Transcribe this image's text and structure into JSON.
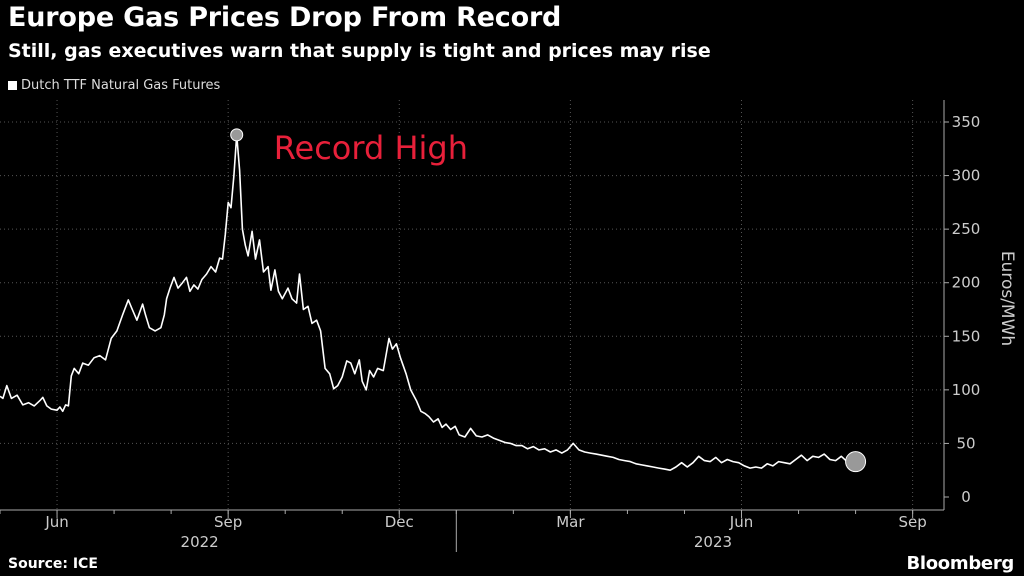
{
  "header": {
    "title": "Europe Gas Prices Drop From Record",
    "subtitle": "Still, gas executives warn that supply is tight and prices may rise"
  },
  "footer": {
    "source": "Source: ICE",
    "brand": "Bloomberg"
  },
  "colors": {
    "background": "#000000",
    "line": "#ffffff",
    "grid": "#555555",
    "annotation": "#e8203a",
    "marker": "#999999"
  },
  "chart_data": {
    "type": "line",
    "title": "Europe Gas Prices Drop From Record",
    "subtitle": "Still, gas executives warn that supply is tight and prices may rise",
    "ylabel": "Euros/MWh",
    "xlabel": "",
    "ylim": [
      0,
      360
    ],
    "yticks": [
      0,
      50,
      100,
      150,
      200,
      250,
      300,
      350
    ],
    "y_axis_side": "right",
    "grid": "dotted vertical + horizontal",
    "x_domain": [
      0,
      16.55
    ],
    "x_unit": "months since 2022-05-01",
    "xticks": [
      {
        "label": "Jun",
        "x": 1.0
      },
      {
        "label": "Sep",
        "x": 4.0
      },
      {
        "label": "Dec",
        "x": 7.0
      },
      {
        "label": "Mar",
        "x": 10.0
      },
      {
        "label": "Jun",
        "x": 13.0
      },
      {
        "label": "Sep",
        "x": 16.0
      }
    ],
    "year_labels": [
      {
        "label": "2022",
        "x": 3.5
      },
      {
        "label": "2023",
        "x": 12.5
      }
    ],
    "year_divider_x": 8.0,
    "series": [
      {
        "name": "Dutch TTF Natural Gas Futures",
        "points": [
          [
            0.0,
            94
          ],
          [
            0.05,
            92
          ],
          [
            0.12,
            104
          ],
          [
            0.2,
            92
          ],
          [
            0.3,
            95
          ],
          [
            0.4,
            86
          ],
          [
            0.5,
            88
          ],
          [
            0.6,
            85
          ],
          [
            0.7,
            90
          ],
          [
            0.75,
            93
          ],
          [
            0.82,
            85
          ],
          [
            0.9,
            82
          ],
          [
            1.0,
            81
          ],
          [
            1.05,
            84
          ],
          [
            1.1,
            80
          ],
          [
            1.15,
            86
          ],
          [
            1.2,
            85
          ],
          [
            1.25,
            113
          ],
          [
            1.3,
            120
          ],
          [
            1.38,
            115
          ],
          [
            1.45,
            125
          ],
          [
            1.55,
            123
          ],
          [
            1.65,
            130
          ],
          [
            1.75,
            132
          ],
          [
            1.85,
            128
          ],
          [
            1.95,
            148
          ],
          [
            2.05,
            155
          ],
          [
            2.15,
            170
          ],
          [
            2.25,
            184
          ],
          [
            2.32,
            175
          ],
          [
            2.4,
            165
          ],
          [
            2.5,
            180
          ],
          [
            2.55,
            170
          ],
          [
            2.62,
            158
          ],
          [
            2.72,
            155
          ],
          [
            2.82,
            158
          ],
          [
            2.88,
            170
          ],
          [
            2.92,
            185
          ],
          [
            2.98,
            195
          ],
          [
            3.05,
            205
          ],
          [
            3.12,
            195
          ],
          [
            3.2,
            200
          ],
          [
            3.27,
            205
          ],
          [
            3.33,
            192
          ],
          [
            3.4,
            198
          ],
          [
            3.47,
            194
          ],
          [
            3.54,
            203
          ],
          [
            3.62,
            208
          ],
          [
            3.7,
            215
          ],
          [
            3.78,
            210
          ],
          [
            3.85,
            223
          ],
          [
            3.9,
            222
          ],
          [
            3.95,
            245
          ],
          [
            4.0,
            275
          ],
          [
            4.05,
            270
          ],
          [
            4.1,
            300
          ],
          [
            4.15,
            338
          ],
          [
            4.2,
            305
          ],
          [
            4.25,
            250
          ],
          [
            4.3,
            235
          ],
          [
            4.35,
            225
          ],
          [
            4.42,
            248
          ],
          [
            4.48,
            222
          ],
          [
            4.55,
            240
          ],
          [
            4.62,
            210
          ],
          [
            4.7,
            215
          ],
          [
            4.75,
            193
          ],
          [
            4.82,
            212
          ],
          [
            4.88,
            192
          ],
          [
            4.95,
            185
          ],
          [
            5.05,
            195
          ],
          [
            5.12,
            185
          ],
          [
            5.2,
            181
          ],
          [
            5.25,
            208
          ],
          [
            5.32,
            175
          ],
          [
            5.4,
            178
          ],
          [
            5.47,
            162
          ],
          [
            5.55,
            165
          ],
          [
            5.62,
            155
          ],
          [
            5.7,
            120
          ],
          [
            5.78,
            115
          ],
          [
            5.85,
            101
          ],
          [
            5.92,
            104
          ],
          [
            6.0,
            112
          ],
          [
            6.08,
            127
          ],
          [
            6.15,
            125
          ],
          [
            6.22,
            115
          ],
          [
            6.3,
            128
          ],
          [
            6.35,
            108
          ],
          [
            6.42,
            100
          ],
          [
            6.48,
            118
          ],
          [
            6.55,
            112
          ],
          [
            6.62,
            120
          ],
          [
            6.72,
            118
          ],
          [
            6.82,
            148
          ],
          [
            6.88,
            138
          ],
          [
            6.95,
            143
          ],
          [
            7.02,
            130
          ],
          [
            7.12,
            115
          ],
          [
            7.2,
            100
          ],
          [
            7.3,
            90
          ],
          [
            7.38,
            80
          ],
          [
            7.45,
            78
          ],
          [
            7.52,
            75
          ],
          [
            7.6,
            70
          ],
          [
            7.68,
            73
          ],
          [
            7.75,
            65
          ],
          [
            7.82,
            68
          ],
          [
            7.9,
            63
          ],
          [
            7.98,
            66
          ],
          [
            8.05,
            58
          ],
          [
            8.15,
            56
          ],
          [
            8.25,
            64
          ],
          [
            8.35,
            57
          ],
          [
            8.45,
            56
          ],
          [
            8.55,
            58
          ],
          [
            8.65,
            55
          ],
          [
            8.75,
            53
          ],
          [
            8.85,
            51
          ],
          [
            8.95,
            50
          ],
          [
            9.05,
            48
          ],
          [
            9.15,
            48
          ],
          [
            9.25,
            45
          ],
          [
            9.35,
            47
          ],
          [
            9.45,
            44
          ],
          [
            9.55,
            45
          ],
          [
            9.65,
            42
          ],
          [
            9.75,
            44
          ],
          [
            9.85,
            41
          ],
          [
            9.95,
            44
          ],
          [
            10.05,
            50
          ],
          [
            10.15,
            44
          ],
          [
            10.25,
            42
          ],
          [
            10.35,
            41
          ],
          [
            10.45,
            40
          ],
          [
            10.55,
            39
          ],
          [
            10.65,
            38
          ],
          [
            10.75,
            37
          ],
          [
            10.85,
            35
          ],
          [
            10.95,
            34
          ],
          [
            11.05,
            33
          ],
          [
            11.15,
            31
          ],
          [
            11.25,
            30
          ],
          [
            11.35,
            29
          ],
          [
            11.45,
            28
          ],
          [
            11.55,
            27
          ],
          [
            11.65,
            26
          ],
          [
            11.75,
            25
          ],
          [
            11.85,
            28
          ],
          [
            11.95,
            32
          ],
          [
            12.05,
            28
          ],
          [
            12.15,
            32
          ],
          [
            12.25,
            38
          ],
          [
            12.35,
            34
          ],
          [
            12.45,
            33
          ],
          [
            12.55,
            37
          ],
          [
            12.65,
            32
          ],
          [
            12.75,
            35
          ],
          [
            12.85,
            33
          ],
          [
            12.95,
            32
          ],
          [
            13.05,
            29
          ],
          [
            13.15,
            27
          ],
          [
            13.25,
            28
          ],
          [
            13.35,
            27
          ],
          [
            13.45,
            31
          ],
          [
            13.55,
            29
          ],
          [
            13.65,
            33
          ],
          [
            13.75,
            32
          ],
          [
            13.85,
            31
          ],
          [
            13.95,
            35
          ],
          [
            14.05,
            39
          ],
          [
            14.15,
            34
          ],
          [
            14.25,
            38
          ],
          [
            14.35,
            37
          ],
          [
            14.45,
            40
          ],
          [
            14.55,
            35
          ],
          [
            14.65,
            34
          ],
          [
            14.75,
            38
          ],
          [
            14.85,
            33
          ],
          [
            14.95,
            36
          ],
          [
            15.0,
            33
          ]
        ]
      }
    ],
    "annotations": [
      {
        "text": "Record High",
        "at_point": [
          4.15,
          338
        ],
        "placement": "right of peak"
      }
    ],
    "markers": [
      {
        "point": [
          4.15,
          338
        ],
        "kind": "peak"
      },
      {
        "point": [
          15.0,
          33
        ],
        "kind": "latest"
      }
    ]
  }
}
